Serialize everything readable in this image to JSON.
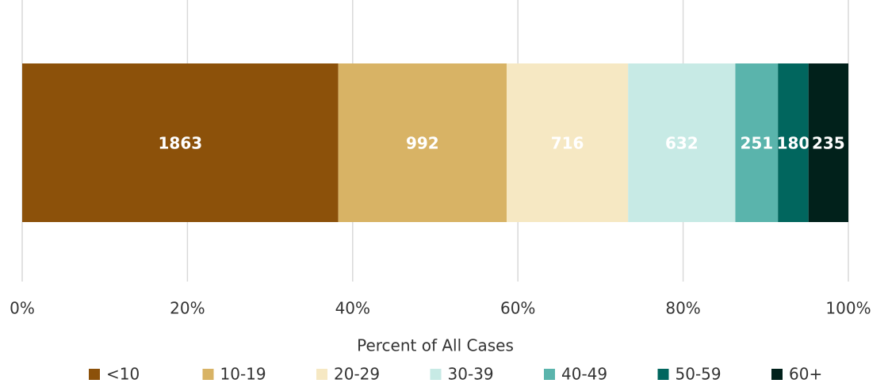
{
  "chart_data": {
    "type": "bar",
    "orientation": "horizontal",
    "stacking": "percent",
    "categories": [
      null
    ],
    "series": [
      {
        "name": "<10",
        "color": "#8c510a",
        "values": [
          1863
        ]
      },
      {
        "name": "10-19",
        "color": "#d8b365",
        "values": [
          992
        ]
      },
      {
        "name": "20-29",
        "color": "#f6e8c3",
        "values": [
          716
        ]
      },
      {
        "name": "30-39",
        "color": "#c7eae5",
        "values": [
          632
        ]
      },
      {
        "name": "40-49",
        "color": "#5ab4ac",
        "values": [
          251
        ]
      },
      {
        "name": "50-59",
        "color": "#01665e",
        "values": [
          180
        ]
      },
      {
        "name": "60+",
        "color": "#01211b",
        "values": [
          235
        ]
      }
    ],
    "xlabel": "Percent of All Cases",
    "xlim": [
      0,
      100
    ],
    "xticks": [
      {
        "value": 0,
        "label": "0%"
      },
      {
        "value": 20,
        "label": "20%"
      },
      {
        "value": 40,
        "label": "40%"
      },
      {
        "value": 60,
        "label": "60%"
      },
      {
        "value": 80,
        "label": "80%"
      },
      {
        "value": 100,
        "label": "100%"
      }
    ],
    "grid": true,
    "legend": "bottom"
  }
}
